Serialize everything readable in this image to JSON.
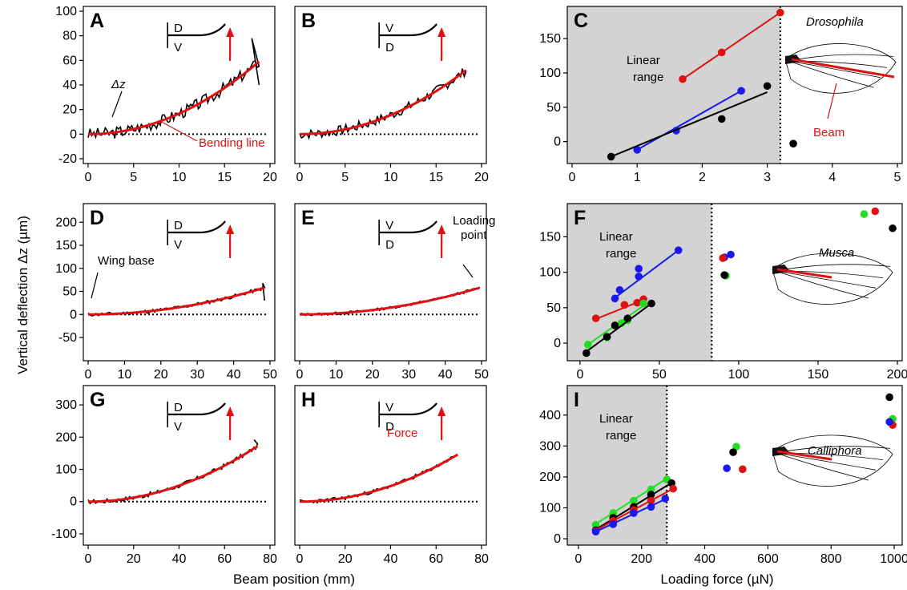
{
  "labels": {
    "y_axis": "Vertical deflection Δz (µm)",
    "x_axis_left": "Beam position (mm)",
    "x_axis_right": "Loading force (µN)",
    "bending_line": "Bending line",
    "dz": "Δz",
    "wing_base": "Wing base",
    "loading_point_1": "Loading",
    "loading_point_2": "point",
    "force": "Force",
    "linear_1": "Linear",
    "linear_2": "range",
    "beam": "Beam",
    "D": "D",
    "V": "V"
  },
  "colors": {
    "red": "#e01010",
    "blue": "#1a1aee",
    "green": "#22dd22",
    "black": "#000000",
    "grey_region": "#d3d3d3"
  },
  "chart_data": [
    {
      "panel": "A",
      "type": "line",
      "xlim": [
        0,
        20
      ],
      "ylim": [
        -20,
        100
      ],
      "xticks": [
        "0",
        "5",
        "10",
        "15",
        "20"
      ],
      "yticks": [
        "-20",
        "0",
        "20",
        "40",
        "60",
        "80",
        "100"
      ],
      "inset": [
        "D",
        "V"
      ],
      "fit_end": [
        18.8,
        59
      ],
      "noise": 5,
      "endspike": [
        [
          18,
          78
        ],
        [
          18.8,
          40
        ]
      ],
      "seed": 3
    },
    {
      "panel": "B",
      "type": "line",
      "xlim": [
        0,
        20
      ],
      "ylim": [
        -20,
        100
      ],
      "xticks": [
        "0",
        "5",
        "10",
        "15",
        "20"
      ],
      "yticks": [],
      "inset": [
        "V",
        "D"
      ],
      "fit_end": [
        18.3,
        52
      ],
      "noise": 4,
      "endspike": [],
      "seed": 7
    },
    {
      "panel": "C",
      "type": "scatter",
      "xlim": [
        0,
        5
      ],
      "ylim": [
        -25,
        190
      ],
      "xticks": [
        "0",
        "1",
        "2",
        "3",
        "4",
        "5"
      ],
      "yticks": [
        "0",
        "50",
        "100",
        "150"
      ],
      "linear_range_max": 3.2,
      "species": "Drosophila",
      "series": [
        {
          "color": "red",
          "points": [
            [
              1.7,
              91
            ],
            [
              2.3,
              130
            ],
            [
              3.2,
              188
            ]
          ],
          "fit": [
            [
              1.7,
              91
            ],
            [
              3.2,
              188
            ]
          ]
        },
        {
          "color": "blue",
          "points": [
            [
              1.0,
              -12
            ],
            [
              1.6,
              16
            ],
            [
              2.6,
              74
            ]
          ],
          "fit": [
            [
              1.0,
              -12
            ],
            [
              2.6,
              74
            ]
          ]
        },
        {
          "color": "black",
          "points": [
            [
              0.6,
              -22
            ],
            [
              2.3,
              33
            ],
            [
              3.0,
              81
            ],
            [
              3.4,
              -3
            ]
          ],
          "fit": [
            [
              0.6,
              -22
            ],
            [
              3.0,
              72
            ]
          ]
        }
      ]
    },
    {
      "panel": "D",
      "type": "line",
      "xlim": [
        0,
        50
      ],
      "ylim": [
        -90,
        230
      ],
      "xticks": [
        "0",
        "10",
        "20",
        "30",
        "40",
        "50"
      ],
      "yticks": [
        "-50",
        "0",
        "50",
        "100",
        "150",
        "200"
      ],
      "inset": [
        "D",
        "V"
      ],
      "fit_end": [
        48.5,
        58
      ],
      "noise": 4,
      "endspike": [
        [
          48,
          68
        ],
        [
          48.5,
          30
        ]
      ],
      "seed": 11
    },
    {
      "panel": "E",
      "type": "line",
      "xlim": [
        0,
        50
      ],
      "ylim": [
        -90,
        230
      ],
      "xticks": [
        "0",
        "10",
        "20",
        "30",
        "40",
        "50"
      ],
      "yticks": [],
      "inset": [
        "V",
        "D"
      ],
      "fit_end": [
        49.5,
        58
      ],
      "noise": 3,
      "endspike": [],
      "seed": 13
    },
    {
      "panel": "F",
      "type": "scatter",
      "xlim": [
        -5,
        200
      ],
      "ylim": [
        -18,
        190
      ],
      "xticks": [
        "0",
        "50",
        "100",
        "150",
        "200"
      ],
      "yticks": [
        "0",
        "50",
        "100",
        "150"
      ],
      "linear_range_max": 83,
      "species": "Musca",
      "series": [
        {
          "color": "blue",
          "points": [
            [
              22,
              63
            ],
            [
              25,
              75
            ],
            [
              37,
              94
            ],
            [
              37,
              105
            ],
            [
              62,
              131
            ],
            [
              91,
              121
            ],
            [
              95,
              125
            ]
          ],
          "fit": [
            [
              22,
              64
            ],
            [
              62,
              131
            ]
          ]
        },
        {
          "color": "red",
          "points": [
            [
              10,
              35
            ],
            [
              28,
              54
            ],
            [
              36,
              57
            ],
            [
              40,
              62
            ],
            [
              90,
              120
            ],
            [
              186,
              186
            ]
          ],
          "fit": [
            [
              10,
              34
            ],
            [
              40,
              61
            ]
          ]
        },
        {
          "color": "green",
          "points": [
            [
              5,
              -2
            ],
            [
              17,
              8
            ],
            [
              26,
              28
            ],
            [
              30,
              32
            ],
            [
              40,
              56
            ],
            [
              92,
              95
            ],
            [
              179,
              182
            ]
          ],
          "fit": [
            [
              5,
              -2
            ],
            [
              42,
              56
            ]
          ]
        },
        {
          "color": "black",
          "points": [
            [
              4,
              -14
            ],
            [
              17,
              9
            ],
            [
              22,
              25
            ],
            [
              30,
              35
            ],
            [
              45,
              56
            ],
            [
              91,
              96
            ],
            [
              197,
              162
            ]
          ],
          "fit": [
            [
              4,
              -12
            ],
            [
              45,
              56
            ]
          ]
        }
      ]
    },
    {
      "panel": "G",
      "type": "line",
      "xlim": [
        0,
        80
      ],
      "ylim": [
        -120,
        345
      ],
      "xticks": [
        "0",
        "20",
        "40",
        "60",
        "80"
      ],
      "yticks": [
        "-100",
        "0",
        "100",
        "200",
        "300"
      ],
      "inset": [
        "D",
        "V"
      ],
      "fit_end": [
        74.5,
        172
      ],
      "noise": 7,
      "endspike": [
        [
          73,
          192
        ]
      ],
      "seed": 17
    },
    {
      "panel": "H",
      "type": "line",
      "xlim": [
        0,
        80
      ],
      "ylim": [
        -120,
        345
      ],
      "xticks": [
        "0",
        "20",
        "40",
        "60",
        "80"
      ],
      "yticks": [],
      "inset": [
        "V",
        "D"
      ],
      "fit_end": [
        69.5,
        146
      ],
      "noise": 6,
      "endspike": [],
      "seed": 23
    },
    {
      "panel": "I",
      "type": "scatter",
      "xlim": [
        -20,
        1010
      ],
      "ylim": [
        -5,
        480
      ],
      "xticks": [
        "0",
        "200",
        "400",
        "600",
        "800",
        "1000"
      ],
      "yticks": [
        "0",
        "100",
        "200",
        "300",
        "400"
      ],
      "linear_range_max": 280,
      "species": "Calliphora",
      "series": [
        {
          "color": "green",
          "points": [
            [
              55,
              45
            ],
            [
              110,
              83
            ],
            [
              175,
              123
            ],
            [
              230,
              160
            ],
            [
              280,
              192
            ],
            [
              500,
              298
            ],
            [
              995,
              388
            ]
          ],
          "fit": [
            [
              55,
              48
            ],
            [
              280,
              195
            ]
          ]
        },
        {
          "color": "black",
          "points": [
            [
              55,
              28
            ],
            [
              110,
              68
            ],
            [
              175,
              103
            ],
            [
              230,
              143
            ],
            [
              295,
              180
            ],
            [
              490,
              280
            ],
            [
              985,
              458
            ]
          ],
          "fit": [
            [
              55,
              30
            ],
            [
              290,
              178
            ]
          ]
        },
        {
          "color": "red",
          "points": [
            [
              55,
              25
            ],
            [
              110,
              58
            ],
            [
              175,
              93
            ],
            [
              230,
              123
            ],
            [
              300,
              162
            ],
            [
              520,
              225
            ],
            [
              995,
              368
            ]
          ],
          "fit": [
            [
              55,
              28
            ],
            [
              300,
              162
            ]
          ]
        },
        {
          "color": "blue",
          "points": [
            [
              55,
              23
            ],
            [
              110,
              47
            ],
            [
              175,
              83
            ],
            [
              230,
              103
            ],
            [
              275,
              130
            ],
            [
              470,
              228
            ],
            [
              985,
              378
            ]
          ],
          "fit": [
            [
              55,
              23
            ],
            [
              275,
              128
            ]
          ]
        }
      ]
    }
  ]
}
